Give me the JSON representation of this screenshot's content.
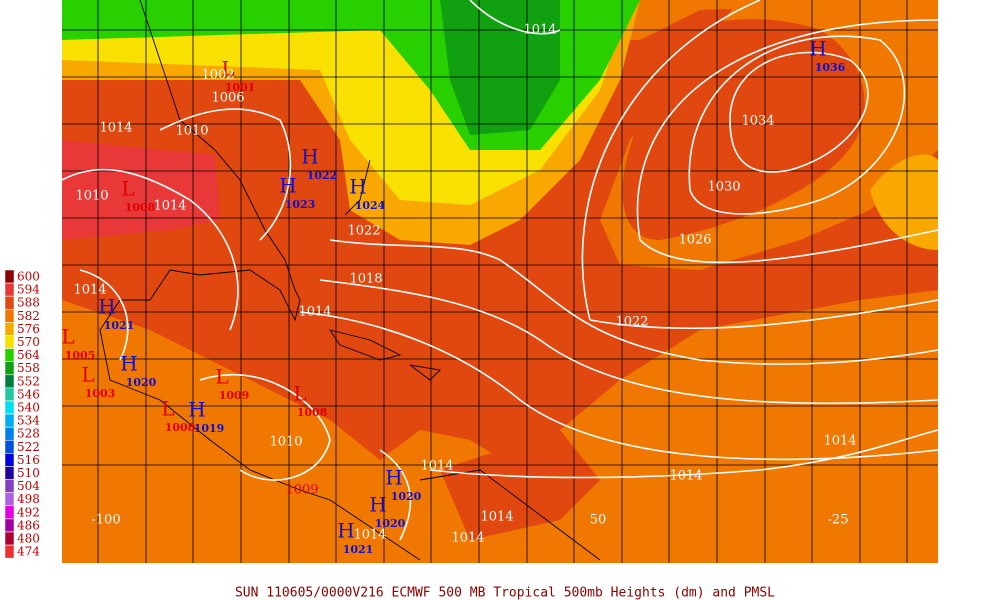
{
  "legend": {
    "items": [
      {
        "value": 600,
        "color": "#8c0000"
      },
      {
        "value": 594,
        "color": "#e83838"
      },
      {
        "value": 588,
        "color": "#e04810"
      },
      {
        "value": 582,
        "color": "#f07800"
      },
      {
        "value": 576,
        "color": "#f8a800"
      },
      {
        "value": 570,
        "color": "#f8e000"
      },
      {
        "value": 564,
        "color": "#28d000"
      },
      {
        "value": 558,
        "color": "#10a010"
      },
      {
        "value": 552,
        "color": "#008040"
      },
      {
        "value": 546,
        "color": "#20c8a0"
      },
      {
        "value": 540,
        "color": "#00e0f0"
      },
      {
        "value": 534,
        "color": "#00b0f0"
      },
      {
        "value": 528,
        "color": "#0080f0"
      },
      {
        "value": 522,
        "color": "#0050e0"
      },
      {
        "value": 516,
        "color": "#0000e0"
      },
      {
        "value": 510,
        "color": "#2000a0"
      },
      {
        "value": 504,
        "color": "#8040c0"
      },
      {
        "value": 498,
        "color": "#b060e0"
      },
      {
        "value": 492,
        "color": "#e000e0"
      },
      {
        "value": 486,
        "color": "#a000a0"
      },
      {
        "value": 480,
        "color": "#b00030"
      },
      {
        "value": 474,
        "color": "#f03030"
      }
    ]
  },
  "highs": [
    {
      "symbol": "H",
      "pressure": "1036"
    },
    {
      "symbol": "H",
      "pressure": "1022"
    },
    {
      "symbol": "H",
      "pressure": "1023"
    },
    {
      "symbol": "H",
      "pressure": "1024"
    },
    {
      "symbol": "H",
      "pressure": "1021"
    },
    {
      "symbol": "H",
      "pressure": "1020"
    },
    {
      "symbol": "H",
      "pressure": "1019"
    },
    {
      "symbol": "H",
      "pressure": "1020"
    },
    {
      "symbol": "H",
      "pressure": "1020"
    },
    {
      "symbol": "H",
      "pressure": "1021"
    }
  ],
  "lows": [
    {
      "symbol": "L",
      "pressure": "1001"
    },
    {
      "symbol": "L",
      "pressure": "1005"
    },
    {
      "symbol": "L",
      "pressure": "1003"
    },
    {
      "symbol": "L",
      "pressure": "1008"
    },
    {
      "symbol": "L",
      "pressure": "1009"
    },
    {
      "symbol": "L",
      "pressure": "1008"
    },
    {
      "symbol": "L",
      "pressure": "1008"
    }
  ],
  "isobar_labels": [
    "1014",
    "1002",
    "1006",
    "1014",
    "1010",
    "1034",
    "1030",
    "1010",
    "1014",
    "1026",
    "1022",
    "1018",
    "1014",
    "1022",
    "1014",
    "1010",
    "1014",
    "1014",
    "1014",
    "1014",
    "1014",
    "1014",
    "1009"
  ],
  "longitudes": [
    "-100",
    "50",
    "-25"
  ],
  "caption": "SUN 110605/0000V216  ECMWF  500 MB Tropical 500mb Heights (dm) and PMSL"
}
